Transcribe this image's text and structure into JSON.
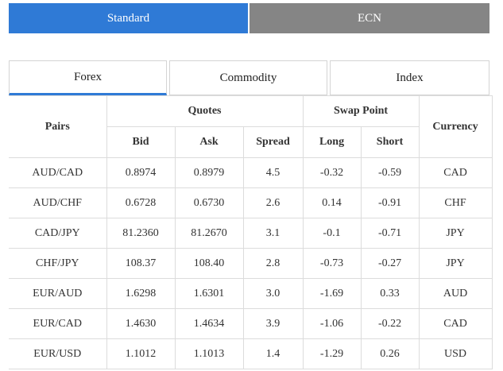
{
  "account_tabs": [
    {
      "label": "Standard",
      "active": true
    },
    {
      "label": "ECN",
      "active": false
    }
  ],
  "market_tabs": [
    {
      "label": "Forex",
      "active": true
    },
    {
      "label": "Commodity",
      "active": false
    },
    {
      "label": "Index",
      "active": false
    }
  ],
  "table": {
    "headers": {
      "pairs": "Pairs",
      "quotes": "Quotes",
      "swap_point": "Swap Point",
      "currency": "Currency",
      "bid": "Bid",
      "ask": "Ask",
      "spread": "Spread",
      "long": "Long",
      "short": "Short"
    },
    "rows": [
      {
        "pair": "AUD/CAD",
        "bid": "0.8974",
        "ask": "0.8979",
        "spread": "4.5",
        "long": "-0.32",
        "short": "-0.59",
        "currency": "CAD"
      },
      {
        "pair": "AUD/CHF",
        "bid": "0.6728",
        "ask": "0.6730",
        "spread": "2.6",
        "long": "0.14",
        "short": "-0.91",
        "currency": "CHF"
      },
      {
        "pair": "CAD/JPY",
        "bid": "81.2360",
        "ask": "81.2670",
        "spread": "3.1",
        "long": "-0.1",
        "short": "-0.71",
        "currency": "JPY"
      },
      {
        "pair": "CHF/JPY",
        "bid": "108.37",
        "ask": "108.40",
        "spread": "2.8",
        "long": "-0.73",
        "short": "-0.27",
        "currency": "JPY"
      },
      {
        "pair": "EUR/AUD",
        "bid": "1.6298",
        "ask": "1.6301",
        "spread": "3.0",
        "long": "-1.69",
        "short": "0.33",
        "currency": "AUD"
      },
      {
        "pair": "EUR/CAD",
        "bid": "1.4630",
        "ask": "1.4634",
        "spread": "3.9",
        "long": "-1.06",
        "short": "-0.22",
        "currency": "CAD"
      },
      {
        "pair": "EUR/USD",
        "bid": "1.1012",
        "ask": "1.1013",
        "spread": "1.4",
        "long": "-1.29",
        "short": "0.26",
        "currency": "USD"
      }
    ]
  },
  "colors": {
    "accent": "#2f7ad6",
    "inactive_tab": "#858585",
    "border": "#dcdcdc"
  }
}
